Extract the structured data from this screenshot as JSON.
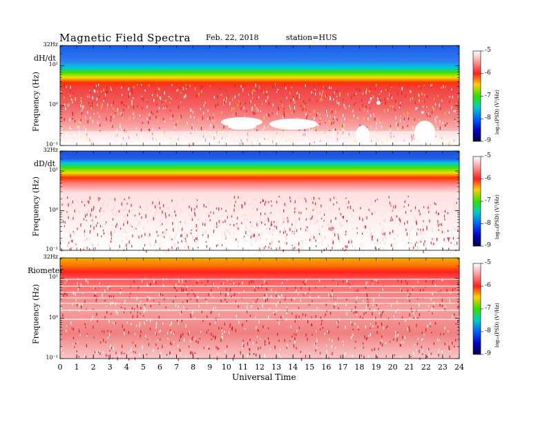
{
  "header": {
    "title": "Magnetic  Field  Spectra",
    "date": "Feb. 22, 2018",
    "station": "station=HUS"
  },
  "chart_data": {
    "type": "heatmap",
    "xlabel": "Universal Time",
    "x_ticks": [
      "0",
      "1",
      "2",
      "3",
      "4",
      "5",
      "6",
      "7",
      "8",
      "9",
      "10",
      "11",
      "12",
      "13",
      "14",
      "15",
      "16",
      "17",
      "18",
      "19",
      "20",
      "21",
      "22",
      "23",
      "24"
    ],
    "xlim": [
      0,
      24
    ],
    "ylim_hz": [
      0.1,
      32
    ],
    "y_scale": "log",
    "colorbar_ticks": [
      "-5",
      "-6",
      "-7",
      "-8",
      "-9"
    ],
    "colorbar_label": "log₁₀(PSD) (V²/Hz)",
    "colorbar_range": [
      -9,
      -5
    ],
    "panels": [
      {
        "name": "dH/dt",
        "ylabel": "Frequency  (Hz)",
        "y_ticks": [
          "32Hz",
          "10¹",
          "10⁰",
          "10⁻¹"
        ]
      },
      {
        "name": "dD/dt",
        "ylabel": "Frequency  (Hz)",
        "y_ticks": [
          "32Hz",
          "10¹",
          "10⁰",
          "10⁻¹"
        ]
      },
      {
        "name": "Riometer",
        "ylabel": "Frequency  (Hz)",
        "y_ticks": [
          "32Hz",
          "10¹",
          "10⁰",
          "10⁻¹"
        ]
      }
    ]
  }
}
